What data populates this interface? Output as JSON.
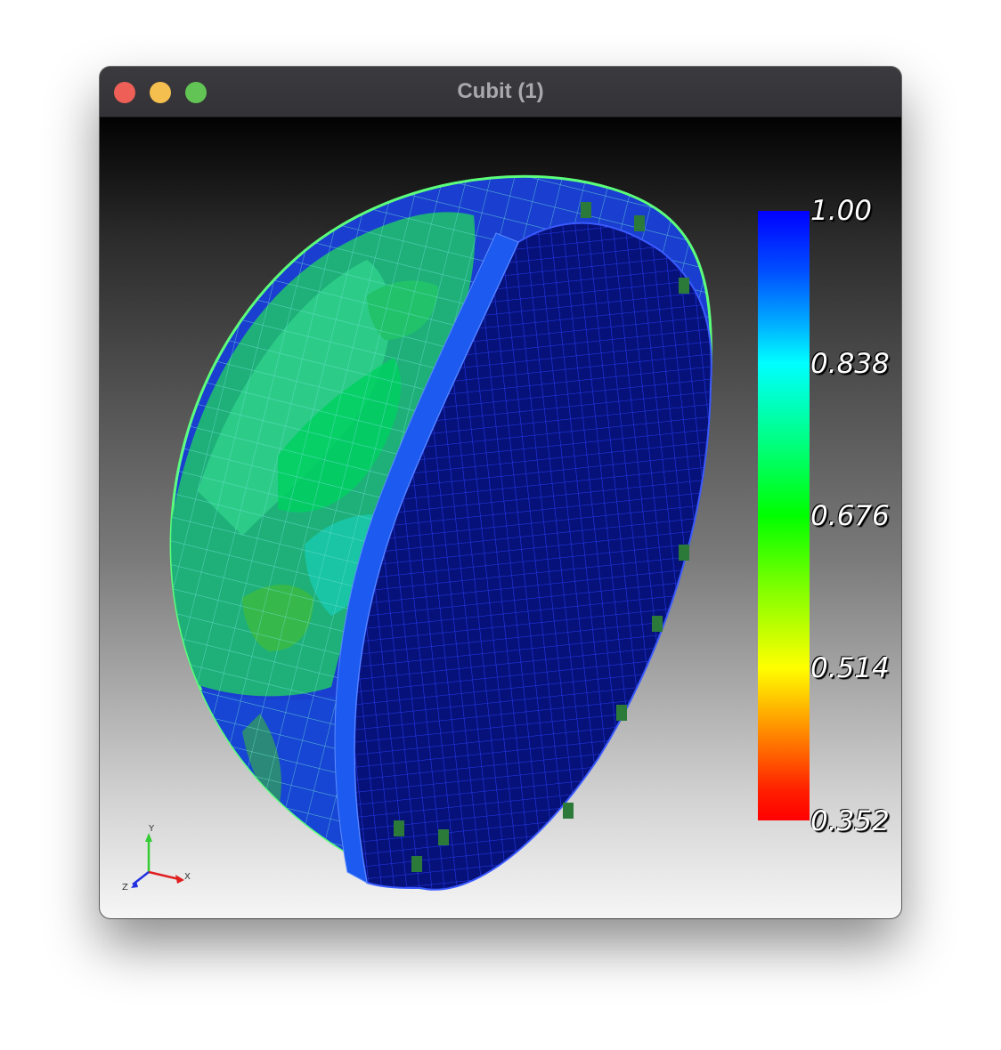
{
  "window": {
    "title": "Cubit (1)"
  },
  "colorbar": {
    "labels": [
      "1.00",
      "0.838",
      "0.676",
      "0.514",
      "0.352"
    ],
    "colors": {
      "top": "#0000ff",
      "cyan": "#00ffff",
      "green": "#00ff00",
      "yellow": "#ffff00",
      "bottom": "#ff0000"
    }
  },
  "axes": {
    "x": "X",
    "y": "Y",
    "z": "Z"
  }
}
